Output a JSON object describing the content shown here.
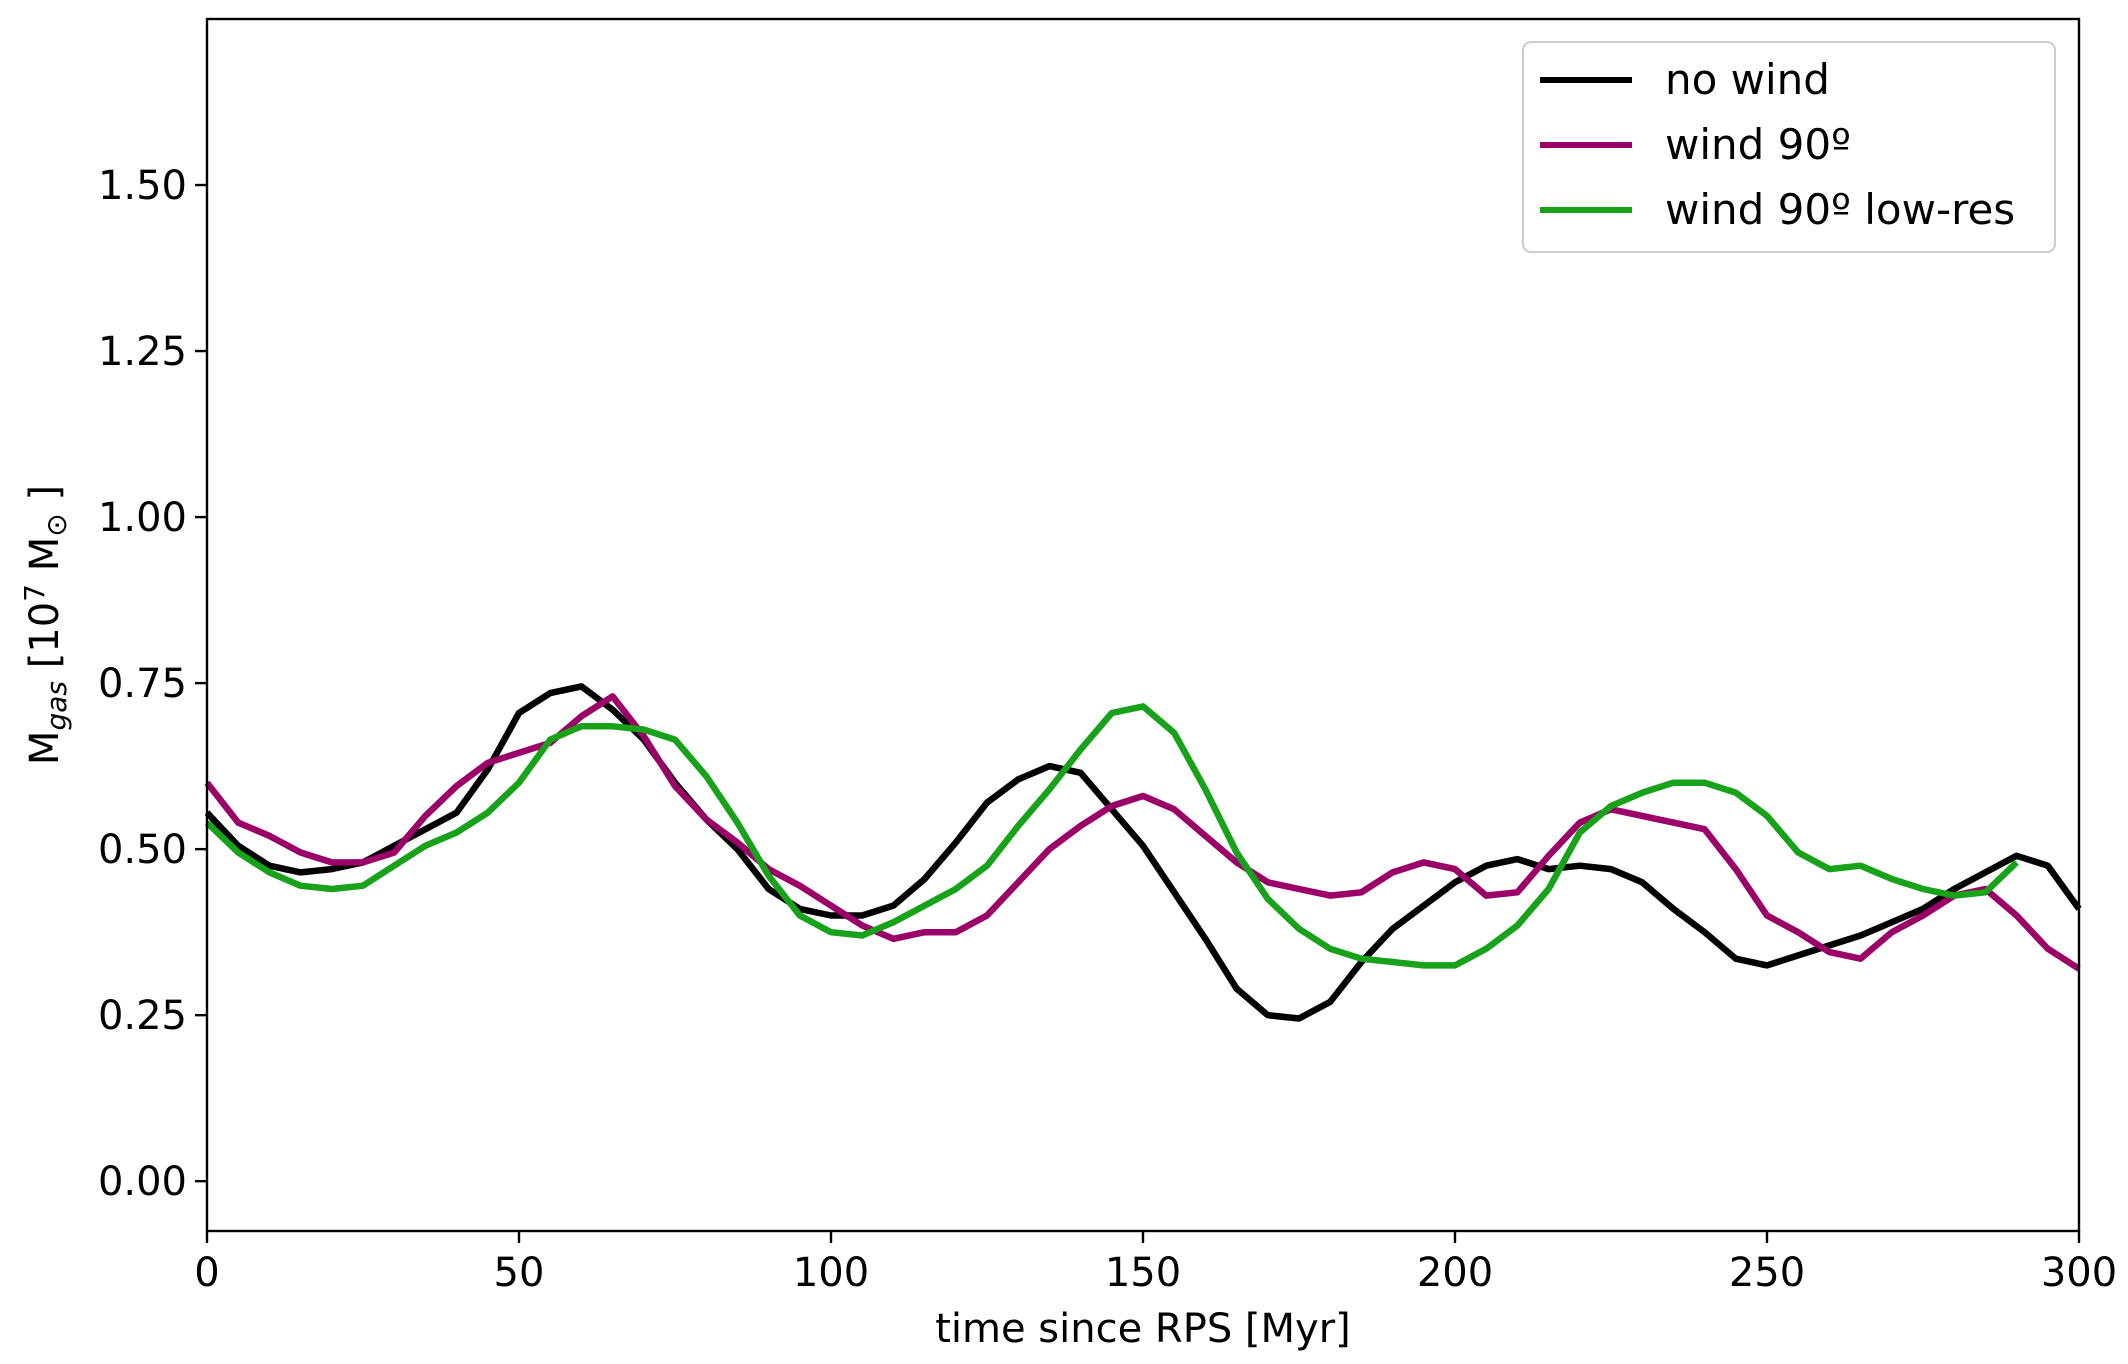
{
  "chart_data": {
    "type": "line",
    "xlabel": "time since RPS [Myr]",
    "ylabel_main": "M",
    "ylabel_sub": "gas",
    "ylabel_rest": " [10",
    "ylabel_sup": "7",
    "ylabel_unit": " M",
    "ylabel_unit_sub": "⊙",
    "ylabel_close": " ]",
    "xlim": [
      0,
      300
    ],
    "ylim": [
      -0.075,
      1.75
    ],
    "xticks": [
      0,
      50,
      100,
      150,
      200,
      250,
      300
    ],
    "yticks": [
      0.0,
      0.25,
      0.5,
      0.75,
      1.0,
      1.25,
      1.5
    ],
    "xtick_labels": [
      "0",
      "50",
      "100",
      "150",
      "200",
      "250",
      "300"
    ],
    "ytick_labels": [
      "0.00",
      "0.25",
      "0.50",
      "0.75",
      "1.00",
      "1.25",
      "1.50"
    ],
    "legend_position": "top-right",
    "grid": false,
    "series": [
      {
        "name": "no wind",
        "color": "#000000",
        "x": [
          0,
          5,
          10,
          15,
          20,
          25,
          30,
          35,
          40,
          45,
          50,
          55,
          60,
          65,
          70,
          75,
          80,
          85,
          90,
          95,
          100,
          105,
          110,
          115,
          120,
          125,
          130,
          135,
          140,
          145,
          150,
          155,
          160,
          165,
          170,
          175,
          180,
          185,
          190,
          195,
          200,
          205,
          210,
          215,
          220,
          225,
          230,
          235,
          240,
          245,
          250,
          255,
          260,
          265,
          270,
          275,
          280,
          285,
          290,
          295,
          300
        ],
        "y": [
          0.555,
          0.505,
          0.475,
          0.465,
          0.47,
          0.48,
          0.505,
          0.53,
          0.555,
          0.62,
          0.705,
          0.735,
          0.745,
          0.71,
          0.665,
          0.6,
          0.545,
          0.5,
          0.44,
          0.41,
          0.4,
          0.4,
          0.415,
          0.455,
          0.51,
          0.57,
          0.605,
          0.625,
          0.615,
          0.56,
          0.505,
          0.435,
          0.365,
          0.29,
          0.25,
          0.245,
          0.27,
          0.33,
          0.38,
          0.415,
          0.45,
          0.475,
          0.485,
          0.47,
          0.475,
          0.47,
          0.45,
          0.41,
          0.375,
          0.335,
          0.325,
          0.34,
          0.355,
          0.37,
          0.39,
          0.41,
          0.44,
          0.465,
          0.49,
          0.475,
          0.41
        ]
      },
      {
        "name": "wind 90º",
        "color": "#9b0068",
        "x": [
          0,
          5,
          10,
          15,
          20,
          25,
          30,
          35,
          40,
          45,
          50,
          55,
          60,
          65,
          70,
          75,
          80,
          85,
          90,
          95,
          100,
          105,
          110,
          115,
          120,
          125,
          130,
          135,
          140,
          145,
          150,
          155,
          160,
          165,
          170,
          175,
          180,
          185,
          190,
          195,
          200,
          205,
          210,
          215,
          220,
          225,
          230,
          235,
          240,
          245,
          250,
          255,
          260,
          265,
          270,
          275,
          280,
          285,
          290,
          295,
          300
        ],
        "y": [
          0.6,
          0.54,
          0.52,
          0.495,
          0.48,
          0.48,
          0.495,
          0.55,
          0.595,
          0.63,
          0.645,
          0.66,
          0.7,
          0.73,
          0.67,
          0.595,
          0.545,
          0.51,
          0.47,
          0.445,
          0.415,
          0.385,
          0.365,
          0.375,
          0.375,
          0.4,
          0.45,
          0.5,
          0.535,
          0.565,
          0.58,
          0.56,
          0.52,
          0.48,
          0.45,
          0.44,
          0.43,
          0.435,
          0.465,
          0.48,
          0.47,
          0.43,
          0.435,
          0.49,
          0.54,
          0.56,
          0.55,
          0.54,
          0.53,
          0.47,
          0.4,
          0.375,
          0.345,
          0.335,
          0.375,
          0.4,
          0.43,
          0.44,
          0.4,
          0.35,
          0.32
        ]
      },
      {
        "name": "wind 90º low-res",
        "color": "#17a21a",
        "x": [
          0,
          5,
          10,
          15,
          20,
          25,
          30,
          35,
          40,
          45,
          50,
          55,
          60,
          65,
          70,
          75,
          80,
          85,
          90,
          95,
          100,
          105,
          110,
          115,
          120,
          125,
          130,
          135,
          140,
          145,
          150,
          155,
          160,
          165,
          170,
          175,
          180,
          185,
          190,
          195,
          200,
          205,
          210,
          215,
          220,
          225,
          230,
          235,
          240,
          245,
          250,
          255,
          260,
          265,
          270,
          275,
          280,
          285,
          290
        ],
        "y": [
          0.54,
          0.495,
          0.465,
          0.445,
          0.44,
          0.445,
          0.475,
          0.505,
          0.525,
          0.555,
          0.6,
          0.665,
          0.685,
          0.685,
          0.68,
          0.665,
          0.61,
          0.54,
          0.46,
          0.4,
          0.375,
          0.37,
          0.39,
          0.415,
          0.44,
          0.475,
          0.535,
          0.59,
          0.65,
          0.705,
          0.715,
          0.675,
          0.59,
          0.495,
          0.425,
          0.38,
          0.35,
          0.335,
          0.33,
          0.325,
          0.325,
          0.35,
          0.385,
          0.44,
          0.525,
          0.565,
          0.585,
          0.6,
          0.6,
          0.585,
          0.55,
          0.495,
          0.47,
          0.475,
          0.455,
          0.44,
          0.43,
          0.435,
          0.48
        ]
      }
    ]
  }
}
